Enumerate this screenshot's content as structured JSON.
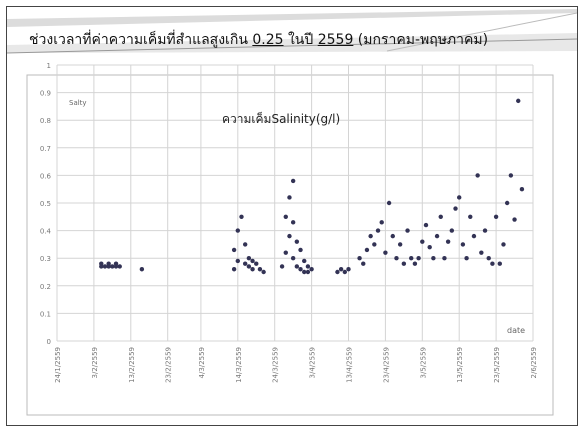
{
  "slide": {
    "title_pre": "ช่วงเวลาที่ค่าความเค็มที่สำแลสูงเกิน ",
    "title_u1": "0.25",
    "title_mid": " ในปี ",
    "title_u2": "2559",
    "title_post": " (มกราคม-พฤษภาคม)"
  },
  "chart_data": {
    "type": "scatter",
    "title": "ความเค็มSalinity(g/l)",
    "ylabel": "Salty",
    "xlabel": "date",
    "ylim": [
      0,
      1
    ],
    "yticks": [
      "0",
      "0.1",
      "0.2",
      "0.3",
      "0.4",
      "0.5",
      "0.6",
      "0.7",
      "0.8",
      "0.9",
      "1"
    ],
    "xticks": [
      "24/1/2559",
      "3/2/2559",
      "13/2/2559",
      "23/2/2559",
      "4/3/2559",
      "14/3/2559",
      "24/3/2559",
      "3/4/2559",
      "13/4/2559",
      "23/4/2559",
      "3/5/2559",
      "13/5/2559",
      "23/5/2559",
      "2/6/2559"
    ],
    "grid": true,
    "marker_color": "#333355",
    "series": [
      {
        "x": [
          "2559-02-05",
          "2559-02-05",
          "2559-02-06",
          "2559-02-07",
          "2559-02-07",
          "2559-02-08",
          "2559-02-09",
          "2559-02-09",
          "2559-02-10",
          "2559-02-16",
          "2559-03-13",
          "2559-03-13",
          "2559-03-14",
          "2559-03-14",
          "2559-03-15",
          "2559-03-16",
          "2559-03-16",
          "2559-03-17",
          "2559-03-17",
          "2559-03-18",
          "2559-03-18",
          "2559-03-19",
          "2559-03-20",
          "2559-03-21",
          "2559-03-26",
          "2559-03-27",
          "2559-03-27",
          "2559-03-28",
          "2559-03-28",
          "2559-03-29",
          "2559-03-29",
          "2559-03-29",
          "2559-03-30",
          "2559-03-30",
          "2559-03-31",
          "2559-03-31",
          "2559-04-01",
          "2559-04-01",
          "2559-04-02",
          "2559-04-02",
          "2559-04-03",
          "2559-04-10",
          "2559-04-11",
          "2559-04-12",
          "2559-04-13",
          "2559-04-16",
          "2559-04-17",
          "2559-04-18",
          "2559-04-19",
          "2559-04-20",
          "2559-04-21",
          "2559-04-22",
          "2559-04-23",
          "2559-04-24",
          "2559-04-25",
          "2559-04-26",
          "2559-04-27",
          "2559-04-28",
          "2559-04-29",
          "2559-04-30",
          "2559-05-01",
          "2559-05-02",
          "2559-05-03",
          "2559-05-04",
          "2559-05-05",
          "2559-05-06",
          "2559-05-07",
          "2559-05-08",
          "2559-05-09",
          "2559-05-10",
          "2559-05-11",
          "2559-05-12",
          "2559-05-13",
          "2559-05-14",
          "2559-05-15",
          "2559-05-16",
          "2559-05-17",
          "2559-05-18",
          "2559-05-19",
          "2559-05-20",
          "2559-05-21",
          "2559-05-22",
          "2559-05-23",
          "2559-05-24",
          "2559-05-25",
          "2559-05-26",
          "2559-05-27",
          "2559-05-28",
          "2559-05-29",
          "2559-05-30"
        ],
        "y": [
          0.27,
          0.28,
          0.27,
          0.28,
          0.27,
          0.27,
          0.28,
          0.27,
          0.27,
          0.26,
          0.26,
          0.33,
          0.29,
          0.4,
          0.45,
          0.28,
          0.35,
          0.3,
          0.27,
          0.29,
          0.26,
          0.28,
          0.26,
          0.25,
          0.27,
          0.32,
          0.45,
          0.38,
          0.52,
          0.58,
          0.43,
          0.3,
          0.36,
          0.27,
          0.33,
          0.26,
          0.29,
          0.25,
          0.27,
          0.25,
          0.26,
          0.25,
          0.26,
          0.25,
          0.26,
          0.3,
          0.28,
          0.33,
          0.38,
          0.35,
          0.4,
          0.43,
          0.32,
          0.5,
          0.38,
          0.3,
          0.35,
          0.28,
          0.4,
          0.3,
          0.28,
          0.3,
          0.36,
          0.42,
          0.34,
          0.3,
          0.38,
          0.45,
          0.3,
          0.36,
          0.4,
          0.48,
          0.52,
          0.35,
          0.3,
          0.45,
          0.38,
          0.6,
          0.32,
          0.4,
          0.3,
          0.28,
          0.45,
          0.28,
          0.35,
          0.5,
          0.6,
          0.44,
          0.87,
          0.55
        ]
      }
    ]
  }
}
